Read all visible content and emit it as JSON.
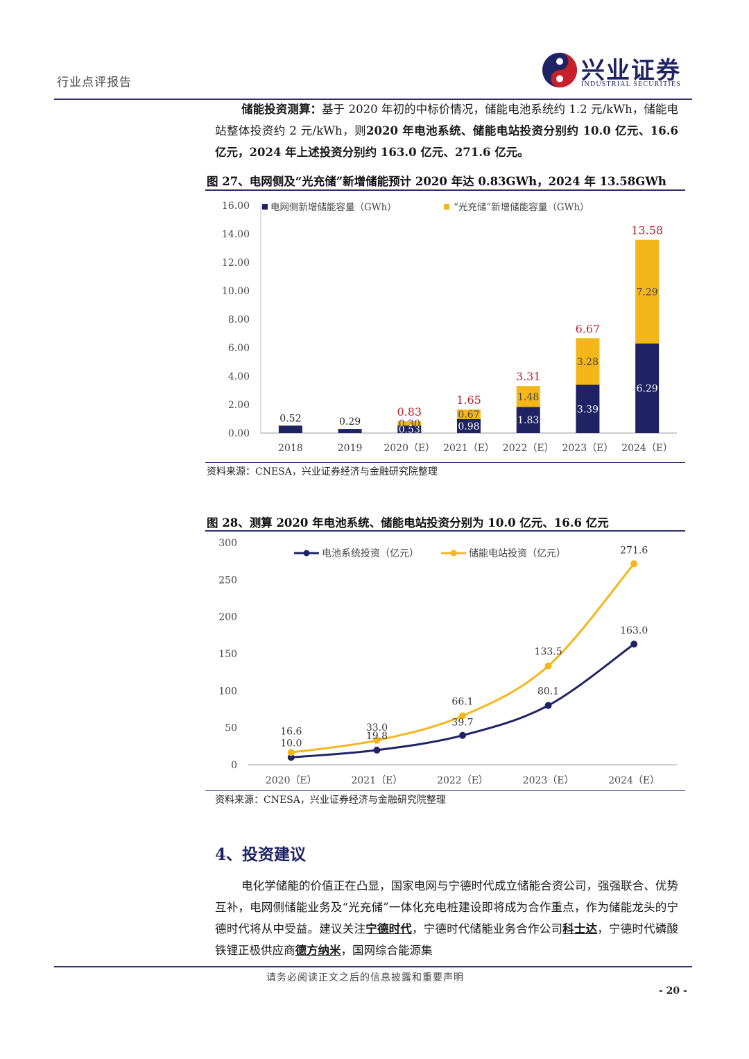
{
  "header": {
    "doc_type": "行业点评报告",
    "logo_cn": "兴业证券",
    "logo_en": "INDUSTRIAL SECURITIES"
  },
  "intro": {
    "bold_lead": "储能投资测算：",
    "text1": "基于 2020 年初的中标价情况，储能电池系统约 1.2 元/kWh，储能电站整体投资约 2 元/kWh，则",
    "bold_tail": "2020 年电池系统、储能电站投资分别约 10.0 亿元、16.6 亿元，2024 年上述投资分别约 163.0 亿元、271.6 亿元。"
  },
  "fig27": {
    "title": "图 27、电网侧及“光充储”新增储能预计 2020 年达 0.83GWh，2024 年 13.58GWh",
    "source": "资料来源：CNESA，兴业证券经济与金融研究院整理"
  },
  "fig28": {
    "title": "图 28、测算 2020 年电池系统、储能电站投资分别为 10.0 亿元、16.6 亿元",
    "source": "资料来源：CNESA，兴业证券经济与金融研究院整理"
  },
  "chart_data": [
    {
      "type": "bar",
      "stacked": true,
      "categories": [
        "2018",
        "2019",
        "2020（E）",
        "2021（E）",
        "2022（E）",
        "2023（E）",
        "2024（E）"
      ],
      "series": [
        {
          "name": "电网侧新增储能容量（GWh）",
          "color": "#1f2364",
          "values": [
            0.52,
            0.29,
            0.53,
            0.98,
            1.83,
            3.39,
            6.29
          ],
          "labels": [
            "0.52",
            "0.29",
            "0.53",
            "0.98",
            "1.83",
            "3.39",
            "6.29"
          ]
        },
        {
          "name": "“光充储”新增储能容量（GWh）",
          "color": "#f5b61a",
          "values": [
            0,
            0,
            0.3,
            0.67,
            1.48,
            3.28,
            7.29
          ],
          "labels": [
            "",
            "",
            "0.30",
            "0.67",
            "1.48",
            "3.28",
            "7.29"
          ]
        }
      ],
      "totals": [
        "",
        "",
        "0.83",
        "1.65",
        "3.31",
        "6.67",
        "13.58"
      ],
      "ylim": [
        0,
        16
      ],
      "yticks": [
        "0.00",
        "2.00",
        "4.00",
        "6.00",
        "8.00",
        "10.00",
        "12.00",
        "14.00",
        "16.00"
      ],
      "legend": "top"
    },
    {
      "type": "line",
      "categories": [
        "2020（E）",
        "2021（E）",
        "2022（E）",
        "2023（E）",
        "2024（E）"
      ],
      "series": [
        {
          "name": "电池系统投资（亿元）",
          "color": "#1f2364",
          "values": [
            10.0,
            19.8,
            39.7,
            80.1,
            163.0
          ],
          "labels": [
            "10.0",
            "19.8",
            "39.7",
            "80.1",
            "163.0"
          ]
        },
        {
          "name": "储能电站投资（亿元）",
          "color": "#f5b61a",
          "values": [
            16.6,
            33.0,
            66.1,
            133.5,
            271.6
          ],
          "labels": [
            "16.6",
            "33.0",
            "66.1",
            "133.5",
            "271.6"
          ]
        }
      ],
      "ylim": [
        0,
        300
      ],
      "yticks": [
        "0",
        "50",
        "100",
        "150",
        "200",
        "250",
        "300"
      ],
      "legend": "top"
    }
  ],
  "section4": {
    "title": "4、投资建议",
    "p1": "电化学储能的价值正在凸显，国家电网与宁德时代成立储能合资公司，强强联合、优势互补，电网侧储能业务及“光充储”一体化充电桩建设即将成为合作重点，作为储能龙头的宁德时代将从中受益。建议关注",
    "u1": "宁德时代",
    "p2": "，宁德时代储能业务合作公司",
    "u2": "科士达",
    "p3": "，宁德时代磷酸铁锂正极供应商",
    "u3": "德方纳米",
    "p4": "，国网综合能源集"
  },
  "footer": {
    "disclaimer": "请务必阅读正文之后的信息披露和重要声明",
    "page": "- 20 -"
  }
}
